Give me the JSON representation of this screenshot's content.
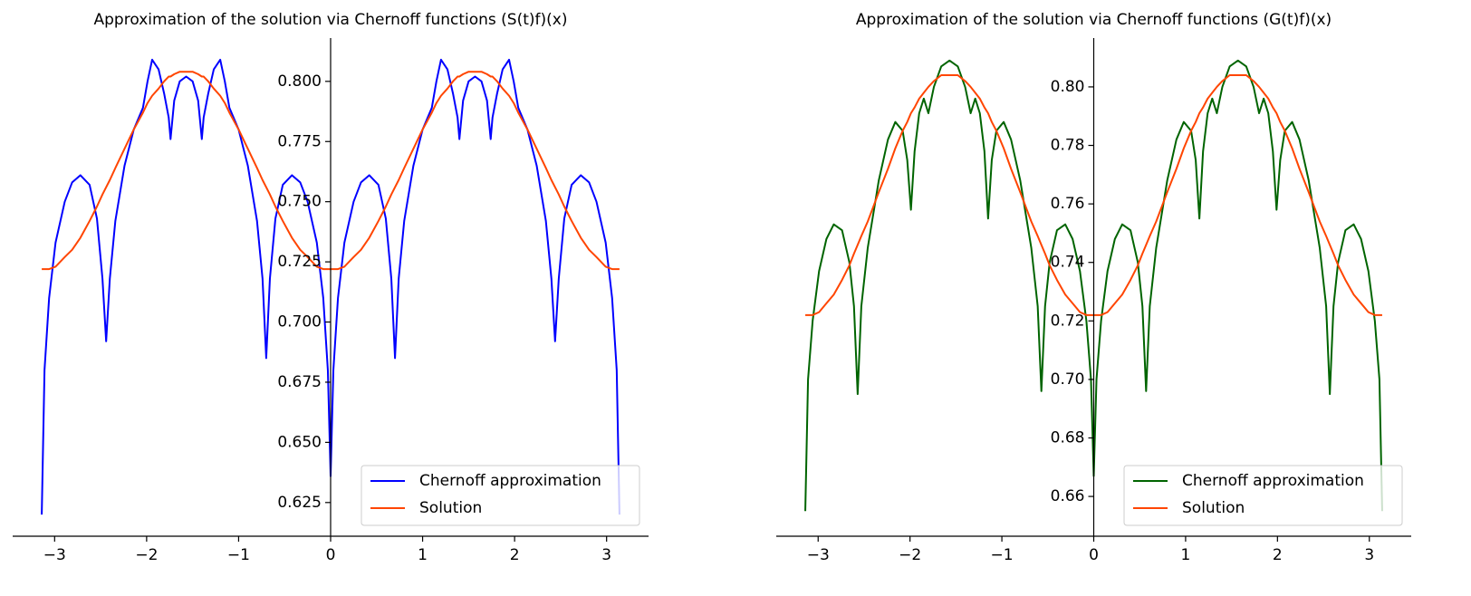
{
  "chart_data": [
    {
      "type": "line",
      "title": "Approximation of the solution via Chernoff functions (S(t)f)(x)",
      "x": [
        -3.14,
        -3.11,
        -3.06,
        -2.99,
        -2.89,
        -2.81,
        -2.72,
        -2.62,
        -2.54,
        -2.48,
        -2.44,
        -2.4,
        -2.34,
        -2.24,
        -2.14,
        -2.04,
        -1.99,
        -1.94,
        -1.87,
        -1.81,
        -1.76,
        -1.74,
        -1.7,
        -1.64,
        -1.57,
        -1.5,
        -1.44,
        -1.4,
        -1.38,
        -1.33,
        -1.27,
        -1.2,
        -1.15,
        -1.1,
        -1.0,
        -0.9,
        -0.8,
        -0.74,
        -0.7,
        -0.66,
        -0.6,
        -0.52,
        -0.42,
        -0.33,
        -0.25,
        -0.15,
        -0.08,
        -0.03,
        0,
        0.03,
        0.08,
        0.15,
        0.25,
        0.33,
        0.42,
        0.52,
        0.6,
        0.66,
        0.7,
        0.74,
        0.8,
        0.9,
        1.0,
        1.1,
        1.15,
        1.2,
        1.27,
        1.33,
        1.38,
        1.4,
        1.44,
        1.5,
        1.57,
        1.64,
        1.7,
        1.74,
        1.76,
        1.81,
        1.87,
        1.94,
        1.99,
        2.04,
        2.14,
        2.24,
        2.34,
        2.4,
        2.44,
        2.48,
        2.54,
        2.62,
        2.72,
        2.81,
        2.89,
        2.99,
        3.06,
        3.11,
        3.14
      ],
      "series": [
        {
          "name": "Chernoff approximation",
          "color": "#0000ff",
          "values": [
            0.62,
            0.68,
            0.71,
            0.733,
            0.75,
            0.758,
            0.761,
            0.757,
            0.743,
            0.718,
            0.692,
            0.718,
            0.742,
            0.765,
            0.78,
            0.789,
            0.8,
            0.809,
            0.805,
            0.795,
            0.785,
            0.776,
            0.792,
            0.8,
            0.802,
            0.8,
            0.792,
            0.776,
            0.785,
            0.795,
            0.805,
            0.809,
            0.8,
            0.789,
            0.78,
            0.765,
            0.742,
            0.718,
            0.685,
            0.718,
            0.743,
            0.757,
            0.761,
            0.758,
            0.75,
            0.733,
            0.71,
            0.68,
            0.636,
            0.68,
            0.71,
            0.733,
            0.75,
            0.758,
            0.761,
            0.757,
            0.743,
            0.718,
            0.685,
            0.718,
            0.742,
            0.765,
            0.78,
            0.789,
            0.8,
            0.809,
            0.805,
            0.795,
            0.785,
            0.776,
            0.792,
            0.8,
            0.802,
            0.8,
            0.792,
            0.776,
            0.785,
            0.795,
            0.805,
            0.809,
            0.8,
            0.789,
            0.78,
            0.765,
            0.742,
            0.718,
            0.692,
            0.718,
            0.743,
            0.757,
            0.761,
            0.758,
            0.75,
            0.733,
            0.71,
            0.68,
            0.62
          ]
        },
        {
          "name": "Solution",
          "color": "#ff4500",
          "values": [
            0.722,
            0.722,
            0.722,
            0.723,
            0.727,
            0.73,
            0.735,
            0.742,
            0.748,
            0.753,
            0.756,
            0.759,
            0.764,
            0.772,
            0.78,
            0.787,
            0.791,
            0.794,
            0.797,
            0.8,
            0.802,
            0.802,
            0.803,
            0.804,
            0.804,
            0.804,
            0.803,
            0.802,
            0.802,
            0.8,
            0.797,
            0.794,
            0.791,
            0.787,
            0.78,
            0.772,
            0.764,
            0.759,
            0.756,
            0.753,
            0.748,
            0.742,
            0.735,
            0.73,
            0.727,
            0.723,
            0.722,
            0.722,
            0.722,
            0.722,
            0.722,
            0.723,
            0.727,
            0.73,
            0.735,
            0.742,
            0.748,
            0.753,
            0.756,
            0.759,
            0.764,
            0.772,
            0.78,
            0.787,
            0.791,
            0.794,
            0.797,
            0.8,
            0.802,
            0.802,
            0.803,
            0.804,
            0.804,
            0.804,
            0.803,
            0.802,
            0.802,
            0.8,
            0.797,
            0.794,
            0.791,
            0.787,
            0.78,
            0.772,
            0.764,
            0.759,
            0.756,
            0.753,
            0.748,
            0.742,
            0.735,
            0.73,
            0.727,
            0.723,
            0.722,
            0.722,
            0.722
          ]
        }
      ],
      "xlim": [
        -3.456,
        3.456
      ],
      "xticks": [
        {
          "value": -3,
          "label": "−3"
        },
        {
          "value": -2,
          "label": "−2"
        },
        {
          "value": -1,
          "label": "−1"
        },
        0,
        1,
        2,
        3
      ],
      "ylim": [
        0.611,
        0.818
      ],
      "yticks": [
        {
          "value": 0.625,
          "label": "0.625"
        },
        {
          "value": 0.65,
          "label": "0.650"
        },
        {
          "value": 0.675,
          "label": "0.675"
        },
        {
          "value": 0.7,
          "label": "0.700"
        },
        {
          "value": 0.725,
          "label": "0.725"
        },
        {
          "value": 0.75,
          "label": "0.750"
        },
        {
          "value": 0.775,
          "label": "0.775"
        },
        {
          "value": 0.8,
          "label": "0.800"
        }
      ],
      "legend": "lower right"
    },
    {
      "type": "line",
      "title": "Approximation of the solution via Chernoff functions (G(t)f)(x)",
      "x": [
        -3.14,
        -3.11,
        -3.06,
        -2.99,
        -2.91,
        -2.83,
        -2.74,
        -2.66,
        -2.61,
        -2.57,
        -2.53,
        -2.46,
        -2.34,
        -2.24,
        -2.16,
        -2.08,
        -2.03,
        -1.99,
        -1.95,
        -1.9,
        -1.85,
        -1.8,
        -1.74,
        -1.66,
        -1.57,
        -1.48,
        -1.4,
        -1.34,
        -1.29,
        -1.24,
        -1.19,
        -1.15,
        -1.11,
        -1.06,
        -0.98,
        -0.9,
        -0.8,
        -0.68,
        -0.61,
        -0.57,
        -0.53,
        -0.48,
        -0.4,
        -0.31,
        -0.23,
        -0.15,
        -0.08,
        -0.03,
        0,
        0.03,
        0.08,
        0.15,
        0.23,
        0.31,
        0.4,
        0.48,
        0.53,
        0.57,
        0.61,
        0.68,
        0.8,
        0.9,
        0.98,
        1.06,
        1.11,
        1.15,
        1.19,
        1.24,
        1.29,
        1.34,
        1.4,
        1.48,
        1.57,
        1.66,
        1.74,
        1.8,
        1.85,
        1.9,
        1.95,
        1.99,
        2.03,
        2.08,
        2.16,
        2.24,
        2.34,
        2.46,
        2.53,
        2.57,
        2.61,
        2.66,
        2.74,
        2.83,
        2.91,
        2.99,
        3.06,
        3.11,
        3.14
      ],
      "series": [
        {
          "name": "Chernoff approximation",
          "color": "#006400",
          "values": [
            0.655,
            0.7,
            0.72,
            0.737,
            0.748,
            0.753,
            0.751,
            0.74,
            0.725,
            0.695,
            0.725,
            0.745,
            0.768,
            0.782,
            0.788,
            0.785,
            0.775,
            0.758,
            0.778,
            0.791,
            0.796,
            0.791,
            0.8,
            0.807,
            0.809,
            0.807,
            0.8,
            0.791,
            0.796,
            0.791,
            0.778,
            0.755,
            0.775,
            0.785,
            0.788,
            0.782,
            0.768,
            0.745,
            0.725,
            0.696,
            0.725,
            0.74,
            0.751,
            0.753,
            0.748,
            0.737,
            0.72,
            0.7,
            0.667,
            0.7,
            0.72,
            0.737,
            0.748,
            0.753,
            0.751,
            0.74,
            0.725,
            0.696,
            0.725,
            0.745,
            0.768,
            0.782,
            0.788,
            0.785,
            0.775,
            0.755,
            0.778,
            0.791,
            0.796,
            0.791,
            0.8,
            0.807,
            0.809,
            0.807,
            0.8,
            0.791,
            0.796,
            0.791,
            0.778,
            0.758,
            0.775,
            0.785,
            0.788,
            0.782,
            0.768,
            0.745,
            0.725,
            0.695,
            0.725,
            0.74,
            0.751,
            0.753,
            0.748,
            0.737,
            0.72,
            0.7,
            0.655
          ]
        },
        {
          "name": "Solution",
          "color": "#ff4500",
          "values": [
            0.722,
            0.722,
            0.722,
            0.723,
            0.726,
            0.729,
            0.734,
            0.739,
            0.743,
            0.746,
            0.749,
            0.754,
            0.764,
            0.772,
            0.779,
            0.785,
            0.788,
            0.791,
            0.793,
            0.796,
            0.798,
            0.8,
            0.802,
            0.804,
            0.804,
            0.804,
            0.802,
            0.8,
            0.798,
            0.796,
            0.793,
            0.791,
            0.788,
            0.785,
            0.779,
            0.772,
            0.764,
            0.754,
            0.749,
            0.746,
            0.743,
            0.739,
            0.734,
            0.729,
            0.726,
            0.723,
            0.722,
            0.722,
            0.722,
            0.722,
            0.722,
            0.723,
            0.726,
            0.729,
            0.734,
            0.739,
            0.743,
            0.746,
            0.749,
            0.754,
            0.764,
            0.772,
            0.779,
            0.785,
            0.788,
            0.791,
            0.793,
            0.796,
            0.798,
            0.8,
            0.802,
            0.804,
            0.804,
            0.804,
            0.802,
            0.8,
            0.798,
            0.796,
            0.793,
            0.791,
            0.788,
            0.785,
            0.779,
            0.772,
            0.764,
            0.754,
            0.749,
            0.746,
            0.743,
            0.739,
            0.734,
            0.729,
            0.726,
            0.723,
            0.722,
            0.722,
            0.722
          ]
        }
      ],
      "xlim": [
        -3.456,
        3.456
      ],
      "xticks": [
        {
          "value": -3,
          "label": "−3"
        },
        {
          "value": -2,
          "label": "−2"
        },
        {
          "value": -1,
          "label": "−1"
        },
        0,
        1,
        2,
        3
      ],
      "ylim": [
        0.6464,
        0.8167
      ],
      "yticks": [
        {
          "value": 0.66,
          "label": "0.66"
        },
        {
          "value": 0.68,
          "label": "0.68"
        },
        {
          "value": 0.7,
          "label": "0.70"
        },
        {
          "value": 0.72,
          "label": "0.72"
        },
        {
          "value": 0.74,
          "label": "0.74"
        },
        {
          "value": 0.76,
          "label": "0.76"
        },
        {
          "value": 0.78,
          "label": "0.78"
        },
        {
          "value": 0.8,
          "label": "0.80"
        }
      ],
      "legend": "lower right"
    }
  ]
}
